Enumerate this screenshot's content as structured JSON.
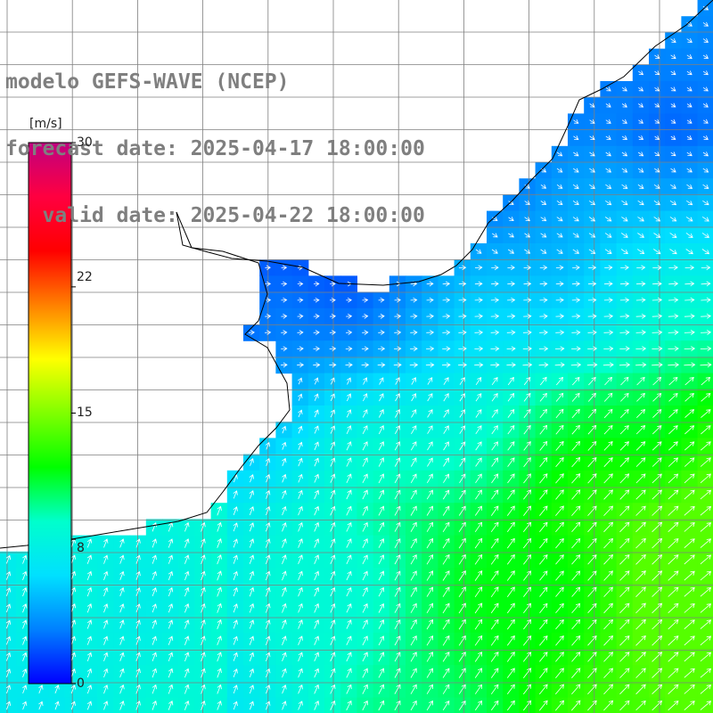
{
  "titles": {
    "model": "modelo GEFS-WAVE (NCEP)",
    "forecast": "forecast date: 2025-04-17 18:00:00",
    "valid": "   valid date: 2025-04-22 18:00:00"
  },
  "colorbar": {
    "unit": "[m/s]",
    "range": [
      0,
      30
    ],
    "ticks": [
      {
        "value": 30,
        "label": "30"
      },
      {
        "value": 22,
        "label": "22"
      },
      {
        "value": 15,
        "label": "15"
      },
      {
        "value": 8,
        "label": "8"
      },
      {
        "value": 0,
        "label": "0"
      }
    ],
    "colors": [
      "#0000ff",
      "#0080ff",
      "#00e0ff",
      "#00ffcc",
      "#00ff00",
      "#80ff00",
      "#ffff00",
      "#ff8000",
      "#ff0000",
      "#ff0040",
      "#c00080"
    ]
  },
  "map": {
    "variable": "wind speed and direction",
    "land_color": "#ffffff",
    "coast_color": "#000000",
    "grid_color": "#7f7f7f",
    "arrow_color": "#ffffff"
  }
}
